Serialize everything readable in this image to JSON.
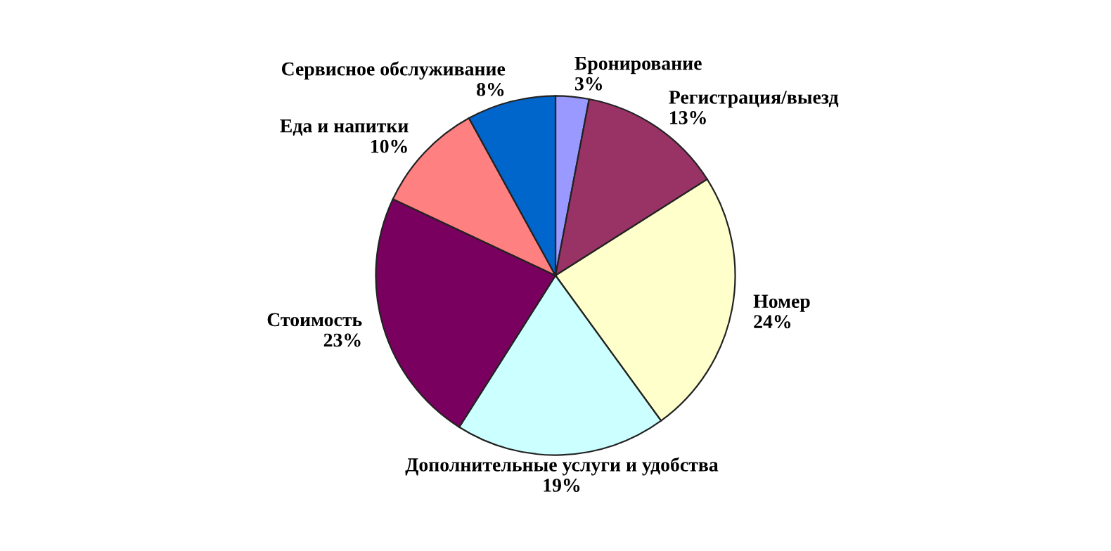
{
  "chart_data": {
    "type": "pie",
    "categories": [
      "Бронирование",
      "Регистрация/выезд",
      "Номер",
      "Дополнительные услуги и удобства",
      "Стоимость",
      "Еда и напитки",
      "Сервисное обслуживание"
    ],
    "values": [
      3,
      13,
      24,
      19,
      23,
      10,
      8
    ],
    "value_labels": [
      "3%",
      "13%",
      "24%",
      "19%",
      "23%",
      "10%",
      "8%"
    ],
    "colors": [
      "#9999ff",
      "#993366",
      "#ffffcc",
      "#ccffff",
      "#7a0060",
      "#ff8080",
      "#0066cc"
    ],
    "legend": false
  }
}
